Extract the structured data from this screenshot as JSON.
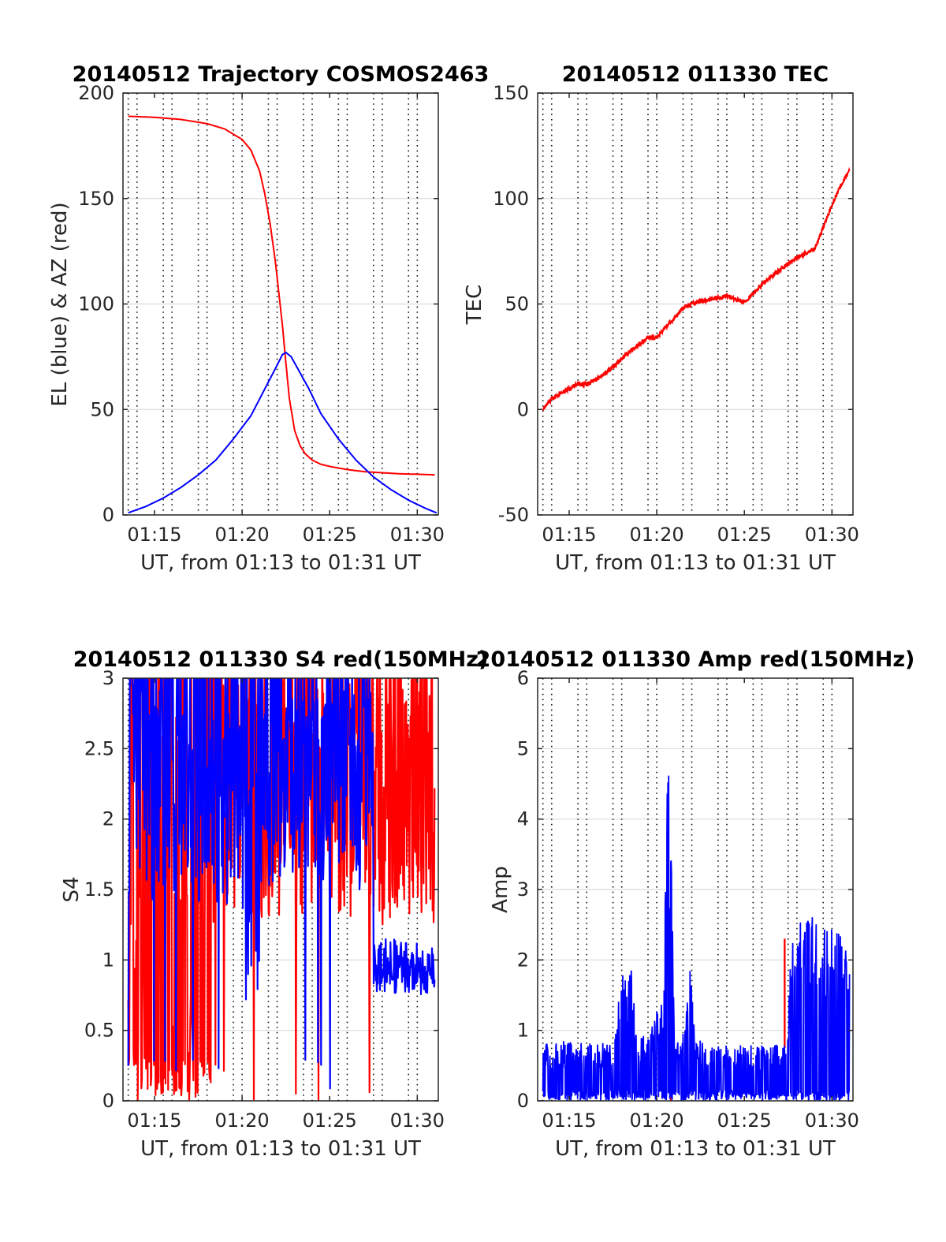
{
  "colors": {
    "red": "#ff0000",
    "blue": "#0000ff",
    "axis": "#262626",
    "grid": "#dcdcdc"
  },
  "chart_data": [
    {
      "id": "traj",
      "type": "line",
      "title": "20140512 Trajectory COSMOS2463",
      "xlabel": "UT, from 01:13 to 01:31 UT",
      "ylabel": "EL (blue) & AZ (red)",
      "xlim": [
        13.2,
        31.2
      ],
      "ylim": [
        0,
        200
      ],
      "xticks": [
        15,
        20,
        25,
        30
      ],
      "xtick_labels": [
        "01:15",
        "01:20",
        "01:25",
        "01:30"
      ],
      "yticks": [
        0,
        50,
        100,
        150,
        200
      ],
      "ytick_labels": [
        "0",
        "50",
        "100",
        "150",
        "200"
      ],
      "dotted_minutes": [
        13.5,
        14,
        15.5,
        16,
        17.5,
        18,
        19.5,
        20,
        21.5,
        22,
        23.5,
        24,
        25.5,
        26,
        27.5,
        28,
        29.5,
        30
      ],
      "series": [
        {
          "color": "red",
          "x": [
            13.5,
            15,
            16.5,
            18,
            19,
            20,
            20.5,
            21,
            21.3,
            21.6,
            21.9,
            22.1,
            22.3,
            22.5,
            22.7,
            23,
            23.3,
            23.6,
            24,
            24.5,
            25,
            26,
            27,
            28,
            29,
            30,
            31
          ],
          "y": [
            189,
            188.5,
            187.5,
            185.5,
            183,
            178,
            173,
            163,
            152,
            138,
            120,
            105,
            90,
            72,
            55,
            40,
            33,
            29,
            26,
            24,
            23,
            21.5,
            20.5,
            20,
            19.5,
            19.3,
            19
          ]
        },
        {
          "color": "blue",
          "x": [
            13.5,
            14.5,
            15.5,
            16.5,
            17.5,
            18.5,
            19.5,
            20.5,
            21,
            21.5,
            22,
            22.3,
            22.5,
            22.8,
            23.2,
            23.8,
            24.5,
            25.5,
            26.5,
            27.5,
            28.5,
            29.5,
            30.5,
            31.1
          ],
          "y": [
            1,
            4,
            8,
            13,
            19,
            26,
            36,
            47,
            55,
            63,
            71,
            76,
            77,
            75,
            69,
            60,
            48,
            36,
            26,
            18,
            12,
            7,
            3,
            1
          ]
        }
      ]
    },
    {
      "id": "tec",
      "type": "line",
      "title": "20140512 011330 TEC",
      "xlabel": "UT, from 01:13 to 01:31 UT",
      "ylabel": "TEC",
      "xlim": [
        13.2,
        31.2
      ],
      "ylim": [
        -50,
        150
      ],
      "xticks": [
        15,
        20,
        25,
        30
      ],
      "xtick_labels": [
        "01:15",
        "01:20",
        "01:25",
        "01:30"
      ],
      "yticks": [
        -50,
        0,
        50,
        100,
        150
      ],
      "ytick_labels": [
        "-50",
        "0",
        "50",
        "100",
        "150"
      ],
      "dotted_minutes": [
        13.5,
        14,
        15.5,
        16,
        17.5,
        18,
        19.5,
        20,
        21.5,
        22,
        23.5,
        24,
        25.5,
        26,
        27.5,
        28,
        29.5,
        30
      ],
      "series": [
        {
          "color": "red",
          "x": [
            13.5,
            14,
            14.5,
            15,
            15.5,
            16,
            16.5,
            17,
            17.5,
            18,
            18.5,
            19,
            19.5,
            20,
            20.5,
            21,
            21.5,
            22,
            22.5,
            23,
            23.5,
            24,
            24.5,
            25,
            25.5,
            26,
            26.5,
            27,
            27.5,
            28,
            28.5,
            29,
            29.5,
            30,
            30.5,
            31
          ],
          "y": [
            0,
            5,
            8,
            10,
            12,
            12,
            14,
            17,
            20,
            24,
            28,
            31,
            34,
            34,
            39,
            43,
            48,
            50,
            51,
            52,
            53,
            54,
            52,
            51,
            55,
            59,
            63,
            66,
            69,
            72,
            74,
            76,
            86,
            97,
            106,
            113
          ]
        }
      ]
    },
    {
      "id": "s4",
      "type": "line",
      "title": "20140512 011330 S4 red(150MHz)",
      "xlabel": "UT, from 01:13 to 01:31 UT",
      "ylabel": "S4",
      "xlim": [
        13.2,
        31.2
      ],
      "ylim": [
        0,
        3
      ],
      "xticks": [
        15,
        20,
        25,
        30
      ],
      "xtick_labels": [
        "01:15",
        "01:20",
        "01:25",
        "01:30"
      ],
      "yticks": [
        0,
        0.5,
        1,
        1.5,
        2,
        2.5,
        3
      ],
      "ytick_labels": [
        "0",
        "0.5",
        "1",
        "1.5",
        "2",
        "2.5",
        "3"
      ],
      "dotted_minutes": [
        13.5,
        14,
        15.5,
        16,
        17.5,
        18,
        19.5,
        20,
        21.5,
        22,
        23.5,
        24,
        25.5,
        26,
        27.5,
        28,
        29.5,
        30
      ],
      "noise_series": [
        {
          "color": "red",
          "x_start": 13.5,
          "x_end": 31,
          "dx": 0.03,
          "seed": 7,
          "regimes": [
            {
              "x0": 13.5,
              "x1": 18.5,
              "low": 0,
              "high": 3,
              "drop_prob": 0.3
            },
            {
              "x0": 18.5,
              "x1": 27.5,
              "low": 1.3,
              "high": 3,
              "drop_prob": 0.02
            },
            {
              "x0": 27.5,
              "x1": 31,
              "low": 1.2,
              "high": 3,
              "drop_prob": 0.0
            }
          ]
        },
        {
          "color": "blue",
          "x_start": 13.5,
          "x_end": 31,
          "dx": 0.03,
          "seed": 19,
          "regimes": [
            {
              "x0": 13.5,
              "x1": 20,
              "low": 1.4,
              "high": 3,
              "drop_prob": 0.03
            },
            {
              "x0": 20,
              "x1": 21,
              "low": 0.6,
              "high": 3,
              "drop_prob": 0.08
            },
            {
              "x0": 21,
              "x1": 27.5,
              "low": 1.5,
              "high": 3,
              "drop_prob": 0.03
            },
            {
              "x0": 27.5,
              "x1": 31,
              "low": 0.75,
              "high": 1.15,
              "drop_prob": 0.0
            }
          ]
        }
      ]
    },
    {
      "id": "amp",
      "type": "line",
      "title": "20140512 011330 Amp red(150MHz)",
      "xlabel": "UT, from 01:13 to 01:31 UT",
      "ylabel": "Amp",
      "xlim": [
        13.2,
        31.2
      ],
      "ylim": [
        0,
        6
      ],
      "xticks": [
        15,
        20,
        25,
        30
      ],
      "xtick_labels": [
        "01:15",
        "01:20",
        "01:25",
        "01:30"
      ],
      "yticks": [
        0,
        1,
        2,
        3,
        4,
        5,
        6
      ],
      "ytick_labels": [
        "0",
        "1",
        "2",
        "3",
        "4",
        "5",
        "6"
      ],
      "dotted_minutes": [
        13.5,
        14,
        15.5,
        16,
        17.5,
        18,
        19.5,
        20,
        21.5,
        22,
        23.5,
        24,
        25.5,
        26,
        27.5,
        28,
        29.5,
        30
      ],
      "red_spike": {
        "x": 27.3,
        "y": 2.3
      },
      "envelope": {
        "x": [
          13.5,
          17.5,
          18,
          18.6,
          19,
          20.4,
          20.6,
          20.8,
          21,
          21.6,
          21.9,
          22.2,
          23,
          27.4,
          27.7,
          28.5,
          29.5,
          30.5,
          31
        ],
        "y": [
          0.85,
          0.85,
          1.9,
          1.9,
          0.85,
          1.5,
          4.9,
          4.5,
          0.8,
          1.0,
          2.0,
          0.9,
          0.8,
          0.8,
          2.4,
          2.7,
          2.6,
          2.4,
          2.0
        ]
      },
      "noise_floor": 0.0
    }
  ]
}
